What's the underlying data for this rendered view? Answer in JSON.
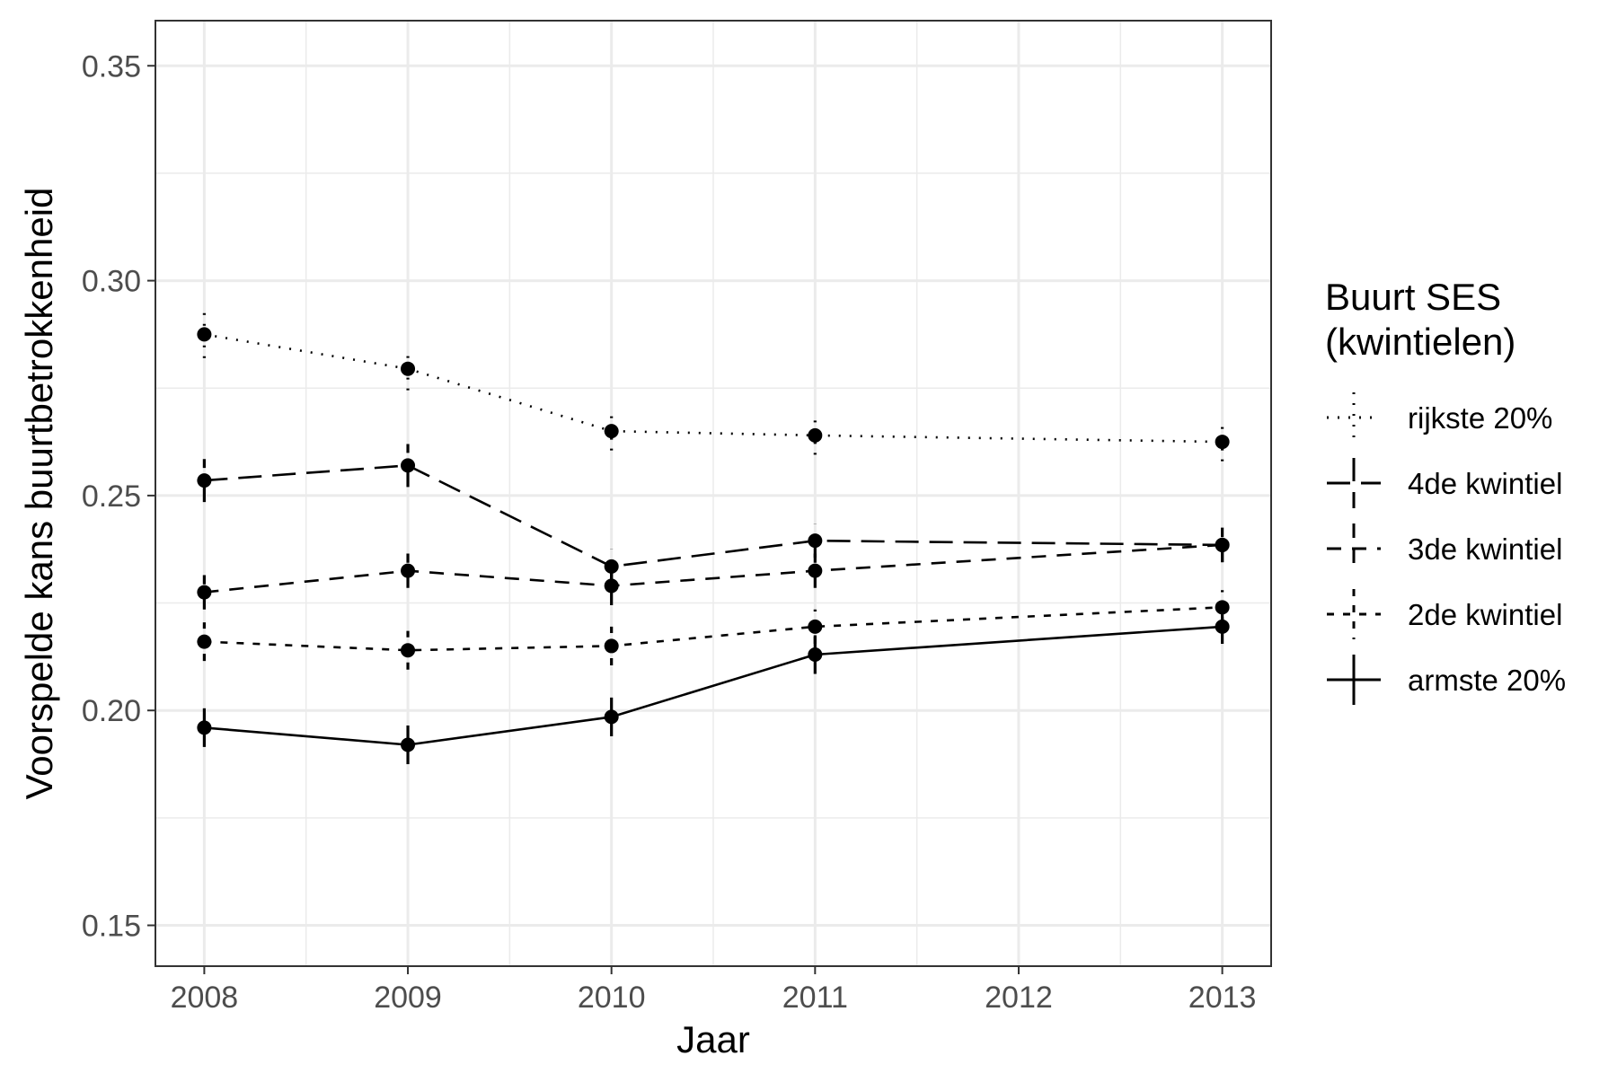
{
  "chart_data": {
    "type": "line",
    "title": "",
    "xlabel": "Jaar",
    "ylabel": "Voorspelde kans buurtbetrokkenheid",
    "x": [
      2008,
      2009,
      2010,
      2011,
      2012,
      2013
    ],
    "xlim": [
      2007.76,
      2013.24
    ],
    "ylim": [
      0.1405,
      0.3605
    ],
    "x_ticks": [
      2008,
      2009,
      2010,
      2011,
      2012,
      2013
    ],
    "x_tick_labels": [
      "2008",
      "2009",
      "2010",
      "2011",
      "2012",
      "2013"
    ],
    "y_ticks": [
      0.15,
      0.2,
      0.25,
      0.3,
      0.35
    ],
    "y_tick_labels": [
      "0.15",
      "0.20",
      "0.25",
      "0.30",
      "0.35"
    ],
    "grid": true,
    "legend": {
      "title_lines": [
        "Buurt SES",
        "(kwintielen)"
      ],
      "position": "right"
    },
    "series": [
      {
        "name": "rijkste 20%",
        "linetype": "dotted",
        "x": [
          2008,
          2009,
          2010,
          2011,
          2013
        ],
        "values": [
          0.2875,
          0.2795,
          0.265,
          0.264,
          0.2625
        ],
        "lower": [
          0.282,
          0.2745,
          0.2605,
          0.2595,
          0.258
        ],
        "upper": [
          0.293,
          0.2845,
          0.2695,
          0.2685,
          0.267
        ]
      },
      {
        "name": "4de kwintiel",
        "linetype": "longdash",
        "x": [
          2008,
          2009,
          2010,
          2011,
          2013
        ],
        "values": [
          0.2535,
          0.257,
          0.2335,
          0.2395,
          0.2385
        ],
        "lower": [
          0.2485,
          0.252,
          0.2295,
          0.2355,
          0.2345
        ],
        "upper": [
          0.2585,
          0.262,
          0.2375,
          0.2435,
          0.2425
        ]
      },
      {
        "name": "3de kwintiel",
        "linetype": "dashed",
        "x": [
          2008,
          2009,
          2010,
          2011,
          2013
        ],
        "values": [
          0.2275,
          0.2325,
          0.229,
          0.2325,
          0.2385
        ],
        "lower": [
          0.2235,
          0.2285,
          0.2245,
          0.2285,
          0.2345
        ],
        "upper": [
          0.2315,
          0.2365,
          0.2335,
          0.2365,
          0.2425
        ]
      },
      {
        "name": "2de kwintiel",
        "linetype": "shortdash",
        "x": [
          2008,
          2009,
          2010,
          2011,
          2013
        ],
        "values": [
          0.216,
          0.214,
          0.215,
          0.2195,
          0.224
        ],
        "lower": [
          0.2115,
          0.2095,
          0.2105,
          0.2155,
          0.22
        ],
        "upper": [
          0.2205,
          0.2185,
          0.2195,
          0.2235,
          0.228
        ]
      },
      {
        "name": "armste 20%",
        "linetype": "solid",
        "x": [
          2008,
          2009,
          2010,
          2011,
          2013
        ],
        "values": [
          0.196,
          0.192,
          0.1985,
          0.213,
          0.2195
        ],
        "lower": [
          0.1915,
          0.1875,
          0.194,
          0.2085,
          0.2155
        ],
        "upper": [
          0.2005,
          0.1965,
          0.203,
          0.2175,
          0.2235
        ]
      }
    ]
  }
}
